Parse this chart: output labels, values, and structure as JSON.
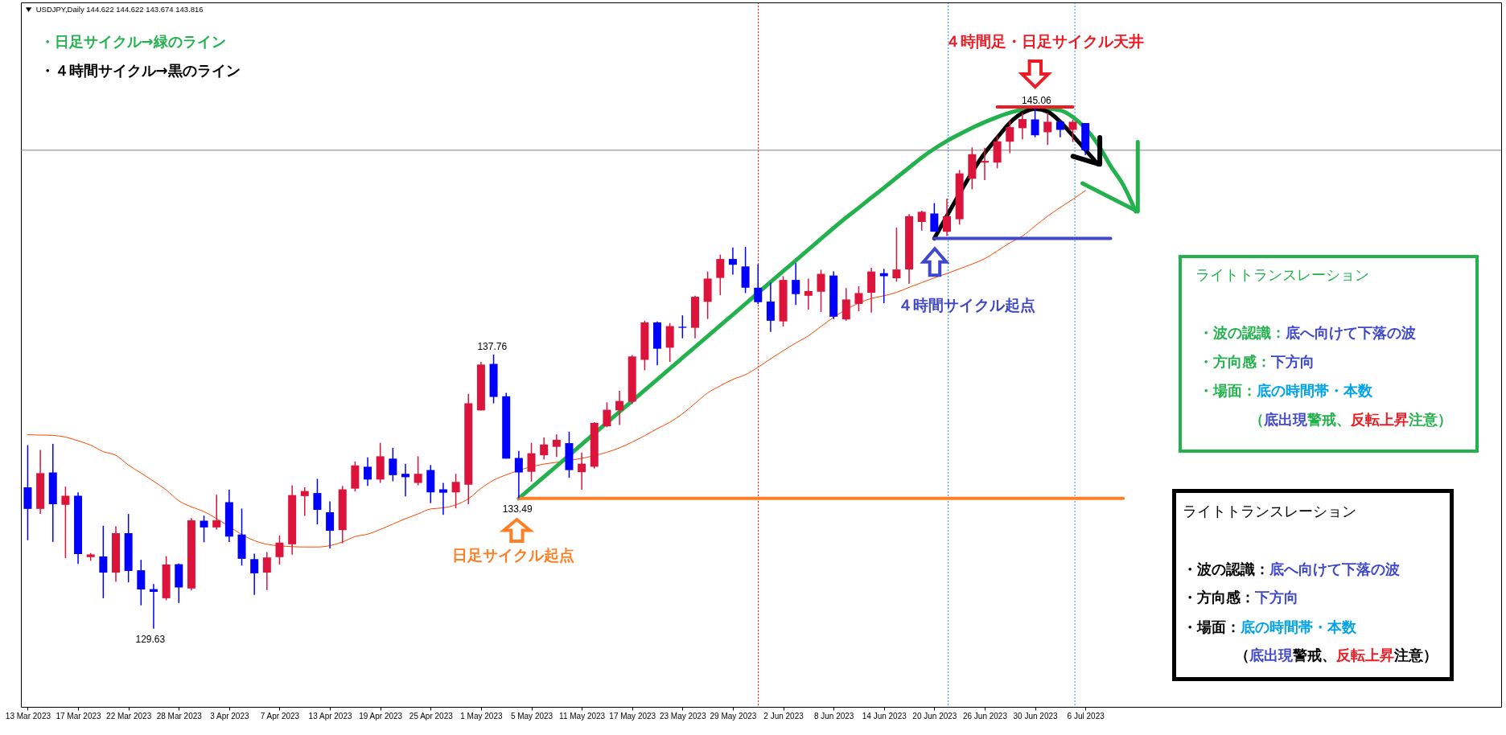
{
  "chart_data": {
    "type": "candlestick",
    "title": "USDJPY,Daily 144.622 144.622 143.674 143.816",
    "categories": [
      "13 Mar 2023",
      null,
      null,
      null,
      "17 Mar 2023",
      null,
      null,
      null,
      "22 Mar 2023",
      null,
      null,
      null,
      "28 Mar 2023",
      null,
      null,
      null,
      "3 Apr 2023",
      null,
      null,
      null,
      "7 Apr 2023",
      null,
      null,
      null,
      "13 Apr 2023",
      null,
      null,
      null,
      "19 Apr 2023",
      null,
      null,
      null,
      "25 Apr 2023",
      null,
      null,
      null,
      "1 May 2023",
      null,
      null,
      null,
      "5 May 2023",
      null,
      null,
      null,
      "11 May 2023",
      null,
      null,
      null,
      "17 May 2023",
      null,
      null,
      null,
      "23 May 2023",
      null,
      null,
      null,
      "29 May 2023",
      null,
      null,
      null,
      "2 Jun 2023",
      null,
      null,
      null,
      "8 Jun 2023",
      null,
      null,
      null,
      "14 Jun 2023",
      null,
      null,
      null,
      "20 Jun 2023",
      null,
      null,
      null,
      "26 Jun 2023",
      null,
      null,
      null,
      "30 Jun 2023",
      null,
      null,
      null,
      "6 Jul 2023",
      null,
      null,
      null,
      null
    ],
    "ohlc": [
      [
        133.82,
        135.07,
        132.25,
        133.18
      ],
      [
        133.18,
        134.93,
        133.03,
        134.24
      ],
      [
        134.26,
        135.11,
        132.2,
        133.32
      ],
      [
        133.3,
        133.84,
        131.72,
        133.57
      ],
      [
        133.57,
        133.67,
        131.55,
        131.84
      ],
      [
        131.75,
        131.87,
        131.64,
        131.83
      ],
      [
        131.77,
        132.68,
        130.53,
        131.29
      ],
      [
        131.29,
        132.66,
        131.02,
        132.46
      ],
      [
        132.46,
        133.03,
        131.0,
        131.34
      ],
      [
        131.36,
        131.67,
        130.32,
        130.79
      ],
      [
        130.8,
        130.95,
        129.63,
        130.72
      ],
      [
        130.53,
        131.78,
        130.47,
        131.53
      ],
      [
        131.54,
        131.56,
        130.39,
        130.85
      ],
      [
        130.82,
        132.91,
        130.76,
        132.84
      ],
      [
        132.83,
        132.98,
        132.19,
        132.63
      ],
      [
        132.63,
        133.6,
        132.57,
        132.84
      ],
      [
        133.38,
        133.75,
        132.2,
        132.36
      ],
      [
        132.42,
        133.19,
        131.5,
        131.7
      ],
      [
        131.69,
        131.85,
        130.63,
        131.27
      ],
      [
        131.29,
        131.9,
        130.77,
        131.74
      ],
      [
        131.75,
        132.39,
        131.53,
        132.18
      ],
      [
        132.13,
        133.88,
        131.82,
        133.59
      ],
      [
        133.56,
        133.82,
        132.97,
        133.71
      ],
      [
        133.65,
        134.07,
        132.72,
        133.15
      ],
      [
        133.08,
        133.4,
        132.01,
        132.53
      ],
      [
        132.55,
        133.86,
        132.16,
        133.76
      ],
      [
        133.78,
        134.59,
        133.7,
        134.47
      ],
      [
        134.43,
        134.71,
        133.86,
        134.05
      ],
      [
        134.05,
        135.14,
        133.95,
        134.74
      ],
      [
        134.67,
        134.99,
        134.0,
        134.18
      ],
      [
        134.22,
        134.52,
        133.55,
        134.12
      ],
      [
        133.95,
        134.74,
        133.88,
        134.22
      ],
      [
        134.33,
        134.48,
        133.35,
        133.67
      ],
      [
        133.76,
        133.95,
        133.0,
        133.66
      ],
      [
        133.67,
        134.22,
        133.2,
        133.98
      ],
      [
        133.9,
        136.59,
        133.32,
        136.31
      ],
      [
        136.1,
        137.54,
        136.1,
        137.46
      ],
      [
        137.48,
        137.76,
        136.31,
        136.5
      ],
      [
        136.52,
        136.62,
        134.67,
        134.67
      ],
      [
        134.69,
        134.9,
        133.49,
        134.26
      ],
      [
        134.28,
        135.14,
        133.99,
        134.83
      ],
      [
        134.77,
        135.3,
        134.65,
        135.09
      ],
      [
        135.02,
        135.39,
        134.72,
        135.23
      ],
      [
        135.13,
        135.47,
        134.1,
        134.33
      ],
      [
        134.27,
        134.85,
        133.75,
        134.52
      ],
      [
        134.43,
        135.75,
        134.38,
        135.73
      ],
      [
        135.63,
        136.34,
        135.6,
        136.12
      ],
      [
        136.1,
        136.68,
        135.67,
        136.38
      ],
      [
        136.36,
        137.74,
        136.29,
        137.7
      ],
      [
        137.6,
        138.76,
        137.29,
        138.71
      ],
      [
        138.71,
        138.74,
        137.44,
        137.93
      ],
      [
        137.96,
        138.69,
        137.54,
        138.6
      ],
      [
        138.58,
        138.92,
        138.24,
        138.55
      ],
      [
        138.55,
        139.5,
        138.24,
        139.47
      ],
      [
        139.32,
        140.22,
        138.81,
        140.01
      ],
      [
        140.03,
        140.72,
        139.52,
        140.59
      ],
      [
        140.59,
        140.93,
        140.13,
        140.42
      ],
      [
        140.37,
        140.95,
        139.58,
        139.74
      ],
      [
        139.74,
        140.44,
        139.25,
        139.31
      ],
      [
        139.33,
        139.89,
        138.43,
        138.76
      ],
      [
        138.74,
        140.08,
        138.59,
        139.97
      ],
      [
        139.97,
        140.47,
        139.23,
        139.55
      ],
      [
        139.5,
        140.01,
        139.09,
        139.64
      ],
      [
        139.62,
        140.27,
        139.02,
        140.15
      ],
      [
        140.1,
        140.22,
        138.81,
        138.88
      ],
      [
        138.8,
        139.73,
        138.76,
        139.39
      ],
      [
        139.26,
        139.78,
        139.04,
        139.58
      ],
      [
        139.59,
        140.33,
        139.0,
        140.22
      ],
      [
        140.17,
        140.3,
        139.28,
        140.08
      ],
      [
        140.02,
        141.52,
        139.92,
        140.28
      ],
      [
        140.28,
        141.92,
        139.86,
        141.86
      ],
      [
        141.69,
        142.02,
        141.43,
        141.99
      ],
      [
        141.94,
        142.25,
        141.4,
        141.4
      ],
      [
        141.4,
        142.38,
        141.27,
        141.86
      ],
      [
        141.77,
        143.23,
        141.61,
        143.13
      ],
      [
        142.97,
        143.9,
        142.66,
        143.7
      ],
      [
        143.45,
        143.89,
        142.93,
        143.5
      ],
      [
        143.45,
        144.24,
        143.28,
        144.08
      ],
      [
        144.07,
        144.69,
        143.73,
        144.5
      ],
      [
        144.47,
        144.92,
        144.14,
        144.74
      ],
      [
        144.73,
        145.06,
        144.2,
        144.26
      ],
      [
        144.35,
        144.92,
        143.97,
        144.66
      ],
      [
        144.66,
        144.72,
        144.2,
        144.42
      ],
      [
        144.42,
        144.72,
        144.06,
        144.66
      ],
      [
        144.622,
        144.622,
        143.674,
        143.816
      ],
      null,
      null,
      null,
      null
    ],
    "colors": [
      "#0000ff",
      "#dc143c",
      "#0000ff",
      "#dc143c",
      "#0000ff",
      "#dc143c",
      "#0000ff",
      "#dc143c",
      "#0000ff",
      "#0000ff",
      "#0000ff",
      "#dc143c",
      "#0000ff",
      "#dc143c",
      "#0000ff",
      "#dc143c",
      "#0000ff",
      "#0000ff",
      "#0000ff",
      "#dc143c",
      "#dc143c",
      "#dc143c",
      "#dc143c",
      "#0000ff",
      "#0000ff",
      "#dc143c",
      "#dc143c",
      "#0000ff",
      "#dc143c",
      "#0000ff",
      "#0000ff",
      "#dc143c",
      "#0000ff",
      "#0000ff",
      "#dc143c",
      "#dc143c",
      "#dc143c",
      "#0000ff",
      "#0000ff",
      "#0000ff",
      "#dc143c",
      "#dc143c",
      "#dc143c",
      "#0000ff",
      "#dc143c",
      "#dc143c",
      "#dc143c",
      "#dc143c",
      "#dc143c",
      "#dc143c",
      "#0000ff",
      "#dc143c",
      "#0000ff",
      "#dc143c",
      "#dc143c",
      "#dc143c",
      "#0000ff",
      "#0000ff",
      "#0000ff",
      "#0000ff",
      "#dc143c",
      "#0000ff",
      "#dc143c",
      "#dc143c",
      "#0000ff",
      "#dc143c",
      "#dc143c",
      "#dc143c",
      "#0000ff",
      "#dc143c",
      "#dc143c",
      "#dc143c",
      "#0000ff",
      "#dc143c",
      "#dc143c",
      "#dc143c",
      "#dc143c",
      "#dc143c",
      "#dc143c",
      "#dc143c",
      "#0000ff",
      "#dc143c",
      "#0000ff",
      "#dc143c",
      "#0000ff",
      null,
      null,
      null,
      null
    ],
    "series": [
      {
        "type": "line",
        "color": "#ff4500",
        "values": [
          135.38,
          135.37,
          135.36,
          135.31,
          135.2,
          135.07,
          134.88,
          134.77,
          134.48,
          134.24,
          134.0,
          133.74,
          133.42,
          133.24,
          133.1,
          132.89,
          null,
          null,
          132.24,
          132.13,
          null,
          132.06,
          132.05,
          132.05,
          132.09,
          132.2,
          132.36,
          132.43,
          132.57,
          132.73,
          132.89,
          133.03,
          133.18,
          133.21,
          133.3,
          133.48,
          133.79,
          134.03,
          134.19,
          null,
          null,
          134.51,
          134.56,
          null,
          134.68,
          null,
          134.86,
          134.99,
          135.16,
          135.35,
          135.56,
          135.75,
          136.0,
          136.31,
          136.62,
          136.83,
          137.02,
          137.16,
          137.38,
          137.63,
          137.87,
          138.1,
          138.31,
          138.59,
          138.86,
          null,
          null,
          139.42,
          139.5,
          139.6,
          139.75,
          139.89,
          140.03,
          140.16,
          140.3,
          140.44,
          140.6,
          140.83,
          141.07,
          141.27,
          141.57,
          141.86,
          142.12,
          142.36,
          142.62,
          null,
          null,
          null,
          null
        ]
      },
      {
        "type": "line",
        "color": "#22b14c",
        "values": [
          null,
          null,
          null,
          null,
          null,
          null,
          null,
          null,
          null,
          null,
          null,
          null,
          null,
          null,
          null,
          null,
          null,
          null,
          null,
          null,
          null,
          null,
          null,
          null,
          null,
          null,
          null,
          null,
          null,
          null,
          null,
          null,
          null,
          null,
          null,
          null,
          null,
          null,
          null,
          133.49,
          133.81,
          134.13,
          134.45,
          null,
          135.09,
          null,
          null,
          136.06,
          136.38,
          136.7,
          137.02,
          137.34,
          137.66,
          137.98,
          138.3,
          138.62,
          138.94,
          139.26,
          null,
          139.91,
          140.23,
          140.55,
          140.87,
          141.19,
          141.51,
          141.82,
          142.11,
          142.41,
          142.7,
          143.0,
          143.3,
          143.6,
          143.86,
          144.09,
          144.29,
          144.48,
          144.65,
          144.8,
          144.93,
          145.02,
          145.08,
          145.05,
          145.0,
          144.8,
          null,
          143.99,
          143.35,
          142.79,
          142.0
        ]
      },
      {
        "type": "line",
        "color": "#000000",
        "values": [
          null,
          null,
          null,
          null,
          null,
          null,
          null,
          null,
          null,
          null,
          null,
          null,
          null,
          null,
          null,
          null,
          null,
          null,
          null,
          null,
          null,
          null,
          null,
          null,
          null,
          null,
          null,
          null,
          null,
          null,
          null,
          null,
          null,
          null,
          null,
          null,
          null,
          null,
          null,
          null,
          null,
          null,
          null,
          null,
          null,
          null,
          null,
          null,
          null,
          null,
          null,
          null,
          null,
          null,
          null,
          null,
          null,
          null,
          null,
          null,
          null,
          null,
          null,
          null,
          null,
          null,
          null,
          null,
          null,
          null,
          null,
          null,
          141.2,
          141.87,
          null,
          null,
          143.73,
          144.19,
          144.63,
          144.92,
          145.04,
          144.96,
          144.66,
          144.25,
          null,
          143.4,
          null,
          null,
          null
        ]
      },
      {
        "type": "line",
        "color": "#ff7f27",
        "values": [
          null,
          null,
          null,
          null,
          null,
          null,
          null,
          null,
          null,
          null,
          null,
          null,
          null,
          null,
          null,
          null,
          null,
          null,
          null,
          null,
          null,
          null,
          null,
          null,
          null,
          null,
          null,
          null,
          null,
          null,
          null,
          null,
          null,
          null,
          null,
          null,
          null,
          null,
          null,
          133.49,
          133.49,
          133.49,
          133.49,
          133.49,
          133.49,
          133.49,
          133.49,
          133.49,
          133.49,
          133.49,
          133.49,
          133.49,
          133.49,
          133.49,
          133.49,
          133.49,
          133.49,
          133.49,
          133.49,
          133.49,
          133.49,
          133.49,
          133.49,
          133.49,
          133.49,
          133.49,
          133.49,
          133.49,
          133.49,
          133.49,
          133.49,
          133.49,
          133.49,
          133.49,
          133.49,
          133.49,
          133.49,
          133.49,
          133.49,
          133.49,
          133.49,
          133.49,
          133.49,
          133.49,
          133.49,
          133.49,
          133.49,
          133.49,
          null
        ]
      },
      {
        "type": "line",
        "color": "#3f48cc",
        "values": [
          null,
          null,
          null,
          null,
          null,
          null,
          null,
          null,
          null,
          null,
          null,
          null,
          null,
          null,
          null,
          null,
          null,
          null,
          null,
          null,
          null,
          null,
          null,
          null,
          null,
          null,
          null,
          null,
          null,
          null,
          null,
          null,
          null,
          null,
          null,
          null,
          null,
          null,
          null,
          null,
          null,
          null,
          null,
          null,
          null,
          null,
          null,
          null,
          null,
          null,
          null,
          null,
          null,
          null,
          null,
          null,
          null,
          null,
          null,
          null,
          null,
          null,
          null,
          null,
          null,
          null,
          null,
          null,
          null,
          null,
          null,
          null,
          141.2,
          141.2,
          141.2,
          141.2,
          141.2,
          141.2,
          141.2,
          141.2,
          141.2,
          141.2,
          141.2,
          141.2,
          141.2,
          141.2,
          141.2,
          null,
          null
        ]
      },
      {
        "type": "line",
        "color": "#ed1c24",
        "values": [
          null,
          null,
          null,
          null,
          null,
          null,
          null,
          null,
          null,
          null,
          null,
          null,
          null,
          null,
          null,
          null,
          null,
          null,
          null,
          null,
          null,
          null,
          null,
          null,
          null,
          null,
          null,
          null,
          null,
          null,
          null,
          null,
          null,
          null,
          null,
          null,
          null,
          null,
          null,
          null,
          null,
          null,
          null,
          null,
          null,
          null,
          null,
          null,
          null,
          null,
          null,
          null,
          null,
          null,
          null,
          null,
          null,
          null,
          null,
          null,
          null,
          null,
          null,
          null,
          null,
          null,
          null,
          null,
          null,
          null,
          null,
          null,
          null,
          null,
          null,
          null,
          null,
          145.1,
          145.1,
          145.1,
          145.1,
          145.1,
          145.1,
          145.1,
          null,
          null,
          null,
          null,
          null
        ]
      }
    ],
    "ref_lines": [
      {
        "axis": "y",
        "value": 143.816,
        "color": "#808080"
      }
    ],
    "tick_labels": "x",
    "annotations": [
      "・日足サイクル→緑のライン",
      "・４時間サイクル→黒のライン",
      "４時間足・日足サイクル天井",
      "４時間サイクル起点",
      "日足サイクル起点",
      {
        "text": "137.76",
        "y": 137.76
      },
      {
        "text": "133.49",
        "y": 133.49
      },
      {
        "text": "129.63",
        "y": 129.63
      },
      {
        "text": "145.06",
        "y": 145.06
      },
      "ライトトランスレーション",
      "・波の認識：",
      "底へ向けて下落の波",
      "・方向感：",
      "下方向",
      "・場面：",
      "底の時間帯・本数",
      "（",
      "底出現",
      "警戒、",
      "反転上昇",
      "注意）",
      "ライトトランスレーション",
      "・波の認識：",
      "底へ向けて下落の波",
      "・方向感：",
      "下方向",
      "・場面：",
      "底の時間帯・本数",
      "（",
      "底出現",
      "警戒、",
      "反転上昇",
      "注意）"
    ]
  }
}
